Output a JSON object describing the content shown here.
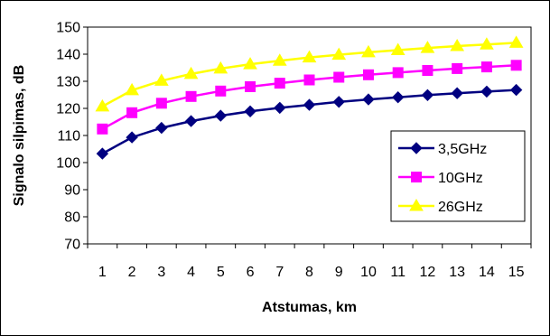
{
  "chart_data": {
    "type": "line",
    "title": "",
    "xlabel": "Atstumas, km",
    "ylabel": "Signalo silpimas, dB",
    "categories": [
      "1",
      "2",
      "3",
      "4",
      "5",
      "6",
      "7",
      "8",
      "9",
      "10",
      "11",
      "12",
      "13",
      "14",
      "15"
    ],
    "ylim": [
      70,
      150
    ],
    "yticks": [
      70,
      80,
      90,
      100,
      110,
      120,
      130,
      140,
      150
    ],
    "grid": false,
    "legend_position": "right",
    "series": [
      {
        "name": "3,5GHz",
        "color": "#000080",
        "marker": "diamond",
        "values": [
          103.3,
          109.3,
          112.8,
          115.3,
          117.3,
          118.9,
          120.2,
          121.3,
          122.4,
          123.3,
          124.1,
          124.9,
          125.6,
          126.2,
          126.8
        ]
      },
      {
        "name": "10GHz",
        "color": "#FF00FF",
        "marker": "square",
        "values": [
          112.4,
          118.4,
          121.9,
          124.4,
          126.4,
          128.0,
          129.3,
          130.5,
          131.5,
          132.4,
          133.2,
          134.0,
          134.7,
          135.3,
          135.9
        ]
      },
      {
        "name": "26GHz",
        "color": "#FFFF00",
        "marker": "triangle",
        "values": [
          120.7,
          126.7,
          130.2,
          132.7,
          134.7,
          136.3,
          137.6,
          138.8,
          139.8,
          140.7,
          141.5,
          142.3,
          143.0,
          143.6,
          144.2
        ]
      }
    ]
  }
}
